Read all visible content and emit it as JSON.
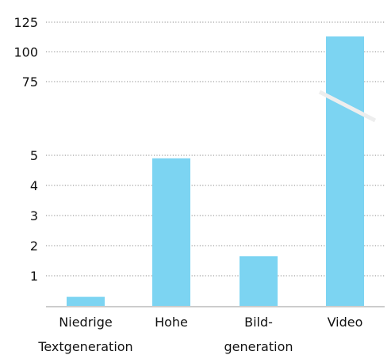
{
  "chart_data": {
    "type": "bar",
    "categories": [
      [
        "Niedrige",
        "Textgeneration"
      ],
      [
        "Hohe"
      ],
      [
        "Bild-",
        "generation"
      ],
      [
        "Video"
      ]
    ],
    "values": [
      0.3,
      4.9,
      1.65,
      113
    ],
    "y_ticks_lower": [
      1,
      2,
      3,
      4,
      5
    ],
    "y_ticks_upper": [
      75,
      100,
      125
    ],
    "axis_break": {
      "lower_range": [
        0,
        5
      ],
      "upper_range": [
        75,
        125
      ]
    },
    "grid": "horizontal dotted",
    "bar_color": "#7cd4f2",
    "title": "",
    "xlabel": "",
    "ylabel": ""
  }
}
